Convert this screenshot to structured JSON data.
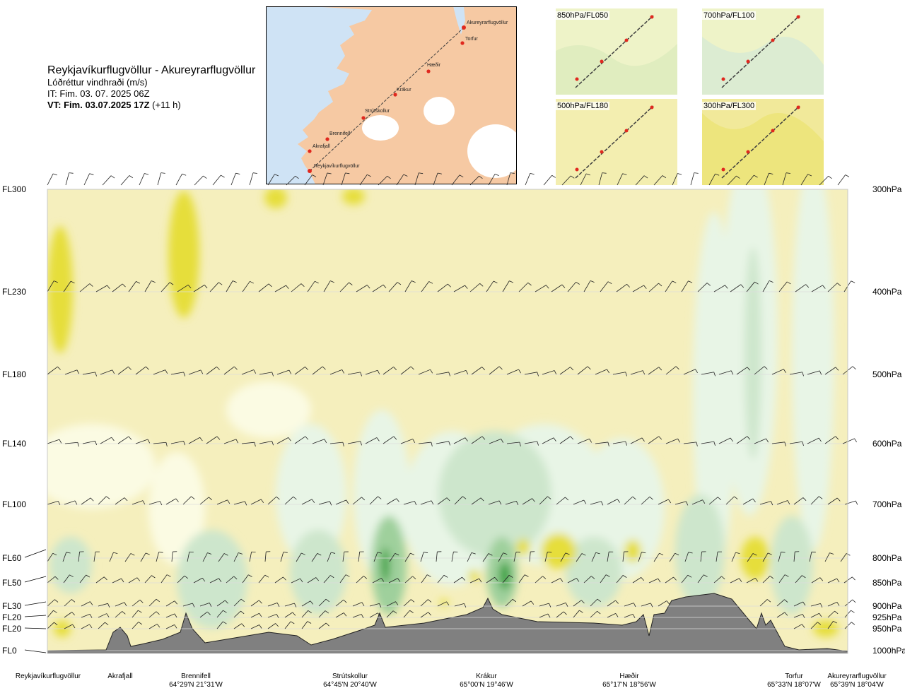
{
  "header": {
    "title": "Reykjavíkurflugvöllur - Akureyrarflugvöllur",
    "subtitle": "Lóðréttur vindhraði (m/s)",
    "init_time": "IT: Fim. 03. 07. 2025 06Z",
    "valid_time_bold": "VT: Fim. 03.07.2025 17Z",
    "valid_time_offset": "(+11 h)"
  },
  "map": {
    "waypoints": [
      "Akureyrarflugvöllur",
      "Torfur",
      "Hæðir",
      "Krákur",
      "Strútskollur",
      "Brennifell",
      "Akrafjall",
      "Reykjavíkurflugvöllur"
    ],
    "land_color": "#f6c9a3",
    "water_color": "#cfe3f5",
    "route_color": "#3d3d3d",
    "waypoint_color": "#e0281e"
  },
  "insets": [
    {
      "label": "850hPa/FL050"
    },
    {
      "label": "700hPa/FL100"
    },
    {
      "label": "500hPa/FL180"
    },
    {
      "label": "300hPa/FL300"
    }
  ],
  "chart_data": {
    "type": "heatmap",
    "variable": "Lóðréttur vindhraði (m/s)",
    "y_left_labels": [
      "FL300",
      "FL230",
      "FL180",
      "FL140",
      "FL100",
      "FL60",
      "FL50",
      "FL30",
      "FL20",
      "FL20",
      "FL0"
    ],
    "y_right_labels": [
      "300hPa",
      "400hPa",
      "500hPa",
      "600hPa",
      "700hPa",
      "800hPa",
      "850hPa",
      "900hPa",
      "925hPa",
      "950hPa",
      "1000hPa"
    ],
    "pressure_levels_hpa": [
      300,
      400,
      500,
      600,
      700,
      800,
      850,
      900,
      925,
      950,
      1000
    ],
    "x_sites": [
      {
        "name": "Reykjavíkurflugvöllur",
        "coord": ""
      },
      {
        "name": "Akrafjall",
        "coord": ""
      },
      {
        "name": "Brennifell",
        "coord": "64°29'N 21°31'W"
      },
      {
        "name": "Strútskollur",
        "coord": "64°45'N 20°40'W"
      },
      {
        "name": "Krákur",
        "coord": "65°00'N 19°46'W"
      },
      {
        "name": "Hæðir",
        "coord": "65°17'N 18°56'W"
      },
      {
        "name": "Torfur",
        "coord": "65°33'N 18°07'W"
      },
      {
        "name": "Akureyrarflugvöllur",
        "coord": "65°39'N 18°04'W"
      }
    ],
    "color_scale": {
      "strong_sink": "#e6de3a",
      "moderate_sink": "#f2eaa0",
      "weak_sink": "#f5efbd",
      "near_zero": "#fbfbe3",
      "weak_rise": "#e8f5e6",
      "moderate_rise": "#cde6cc",
      "strong_rise": "#9fd09c",
      "very_strong_rise": "#33a03a",
      "terrain": "#808080"
    }
  }
}
